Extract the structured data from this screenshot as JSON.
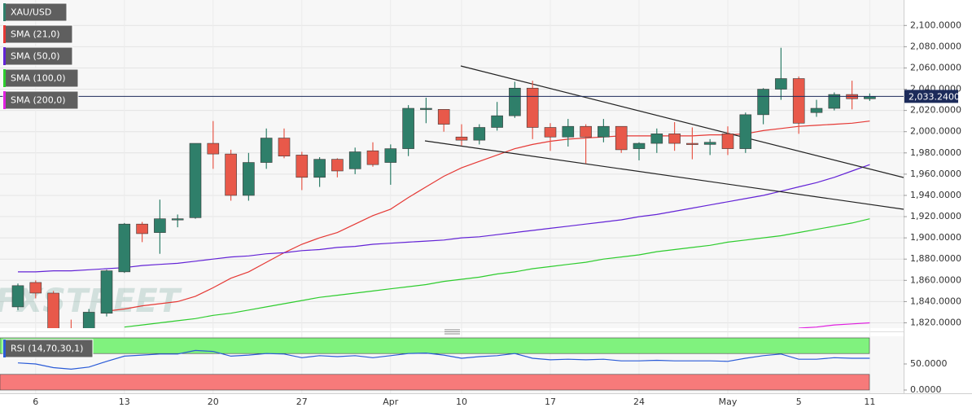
{
  "chart_data": [
    {
      "type": "candlestick",
      "categories": [
        null,
        "6",
        null,
        null,
        null,
        null,
        "13",
        null,
        null,
        null,
        null,
        "20",
        null,
        null,
        null,
        null,
        "27",
        null,
        null,
        null,
        null,
        "Apr",
        null,
        null,
        null,
        "10",
        null,
        null,
        null,
        null,
        "17",
        null,
        null,
        null,
        null,
        "24",
        null,
        null,
        null,
        null,
        "May",
        null,
        null,
        null,
        "5",
        null,
        null,
        null,
        "11"
      ],
      "series": [
        {
          "name": "XAU/USD",
          "type": "candlestick",
          "up_color": "#2f7f6a",
          "down_color": "#e8594a",
          "open": [
            1835,
            1858,
            1848,
            1812,
            1805,
            1829,
            1868,
            1913,
            1905,
            1917,
            1919,
            1989,
            1979,
            1940,
            1971,
            1994,
            1978,
            1957,
            1974,
            1965,
            1982,
            1971,
            1984,
            2021,
            2021,
            1995,
            1992,
            2004,
            2015,
            2041,
            2004,
            1995,
            2005,
            1995,
            2005,
            1984,
            1989,
            1998,
            1989,
            1988,
            1998,
            1984,
            2016,
            2040,
            2050,
            2018,
            2022,
            2035,
            2031
          ],
          "high": [
            1857,
            1860,
            1850,
            1823,
            1833,
            1870,
            1914,
            1915,
            1936,
            1922,
            1989,
            2010,
            1983,
            1980,
            2003,
            2003,
            1981,
            1976,
            1975,
            1985,
            1990,
            1988,
            2025,
            2032,
            2021,
            2007,
            2007,
            2028,
            2047,
            2048,
            2008,
            2012,
            2007,
            2012,
            2005,
            1990,
            2003,
            2009,
            2004,
            1993,
            2005,
            2018,
            2041,
            2079,
            2052,
            2030,
            2037,
            2048,
            2036
          ],
          "low": [
            1832,
            1843,
            1810,
            1795,
            1800,
            1826,
            1867,
            1896,
            1885,
            1910,
            1918,
            1965,
            1935,
            1935,
            1965,
            1975,
            1945,
            1948,
            1957,
            1960,
            1967,
            1950,
            1977,
            2008,
            2000,
            1987,
            1988,
            2001,
            2013,
            1993,
            1982,
            1986,
            1970,
            1990,
            1980,
            1973,
            1980,
            1982,
            1974,
            1978,
            1978,
            1980,
            2007,
            2030,
            1998,
            2014,
            2020,
            2021,
            2029
          ],
          "close": [
            1855,
            1848,
            1812,
            1800,
            1830,
            1869,
            1913,
            1904,
            1918,
            1918,
            1989,
            1979,
            1940,
            1971,
            1994,
            1977,
            1957,
            1974,
            1963,
            1981,
            1969,
            1984,
            2022,
            2022,
            2007,
            1992,
            2004,
            2015,
            2041,
            2004,
            1995,
            2005,
            1995,
            2005,
            1983,
            1989,
            1998,
            1989,
            1988,
            1990,
            1984,
            2016,
            2040,
            2050,
            2008,
            2022,
            2035,
            2031,
            2033.24
          ]
        },
        {
          "name": "SMA (21,0)",
          "type": "line",
          "color": "#e53935",
          "values": [
            null,
            null,
            null,
            null,
            null,
            1831,
            1833,
            1836,
            1838,
            1840,
            1845,
            1853,
            1862,
            1868,
            1877,
            1886,
            1894,
            1900,
            1905,
            1913,
            1921,
            1927,
            1938,
            1948,
            1958,
            1966,
            1972,
            1978,
            1984,
            1988,
            1991,
            1993,
            1994,
            1995,
            1996,
            1996,
            1996,
            1996,
            1996,
            1997,
            1997,
            1998,
            2001,
            2003,
            2005,
            2006,
            2007,
            2008,
            2010
          ]
        },
        {
          "name": "SMA (50,0)",
          "type": "line",
          "color": "#6323d6",
          "values": [
            1868,
            1868,
            1869,
            1869,
            1870,
            1871,
            1872,
            1874,
            1875,
            1876,
            1878,
            1880,
            1882,
            1883,
            1885,
            1886,
            1888,
            1889,
            1891,
            1892,
            1894,
            1895,
            1896,
            1897,
            1898,
            1900,
            1901,
            1903,
            1905,
            1907,
            1909,
            1911,
            1913,
            1915,
            1917,
            1920,
            1922,
            1925,
            1928,
            1931,
            1934,
            1937,
            1940,
            1944,
            1948,
            1952,
            1957,
            1963,
            1969
          ]
        },
        {
          "name": "SMA (100,0)",
          "type": "line",
          "color": "#2ecc2e",
          "values": [
            null,
            null,
            null,
            null,
            null,
            null,
            1816,
            1818,
            1820,
            1822,
            1824,
            1827,
            1829,
            1832,
            1835,
            1838,
            1841,
            1844,
            1846,
            1848,
            1850,
            1852,
            1854,
            1856,
            1859,
            1861,
            1863,
            1866,
            1868,
            1871,
            1873,
            1875,
            1877,
            1880,
            1882,
            1884,
            1887,
            1889,
            1891,
            1893,
            1896,
            1898,
            1900,
            1902,
            1905,
            1908,
            1911,
            1914,
            1918
          ]
        },
        {
          "name": "SMA (200,0)",
          "type": "line",
          "color": "#e020e0",
          "values": [
            null,
            null,
            null,
            null,
            null,
            null,
            null,
            null,
            null,
            null,
            null,
            null,
            null,
            null,
            null,
            null,
            null,
            null,
            null,
            null,
            null,
            null,
            null,
            null,
            null,
            null,
            null,
            null,
            null,
            null,
            null,
            null,
            null,
            null,
            null,
            null,
            null,
            null,
            null,
            null,
            null,
            null,
            null,
            null,
            1815,
            1816,
            1818,
            1819,
            1820
          ]
        }
      ],
      "ylim": [
        1815,
        2124
      ],
      "yticks": [
        {
          "value": 1820,
          "label": "1,820.0000"
        },
        {
          "value": 1840,
          "label": "1,840.0000"
        },
        {
          "value": 1860,
          "label": "1,860.0000"
        },
        {
          "value": 1880,
          "label": "1,880.0000"
        },
        {
          "value": 1900,
          "label": "1,900.0000"
        },
        {
          "value": 1920,
          "label": "1,920.0000"
        },
        {
          "value": 1940,
          "label": "1,940.0000"
        },
        {
          "value": 1960,
          "label": "1,960.0000"
        },
        {
          "value": 1980,
          "label": "1,980.0000"
        },
        {
          "value": 2000,
          "label": "2,000.0000"
        },
        {
          "value": 2020,
          "label": "2,020.0000"
        },
        {
          "value": 2040,
          "label": "2,040.0000"
        },
        {
          "value": 2060,
          "label": "2,060.0000"
        },
        {
          "value": 2080,
          "label": "2,080.0000"
        },
        {
          "value": 2100,
          "label": "2,100.0000"
        }
      ],
      "last_price": {
        "value": 2033.24,
        "label": "2,033.2400",
        "color": "#1c2b5a"
      },
      "watermark": "FXSTREET",
      "grid": true
    },
    {
      "type": "line",
      "series": [
        {
          "name": "RSI (14,70,30,1)",
          "color": "#2a5bd7",
          "values": [
            52,
            50,
            43,
            40,
            44,
            55,
            65,
            67,
            69,
            69,
            76,
            74,
            65,
            67,
            70,
            69,
            62,
            66,
            64,
            66,
            62,
            66,
            70,
            71,
            67,
            61,
            64,
            66,
            70,
            61,
            58,
            59,
            58,
            59,
            56,
            56,
            57,
            56,
            56,
            56,
            55,
            61,
            66,
            69,
            59,
            59,
            62,
            61,
            61
          ]
        }
      ],
      "bands": [
        {
          "from": 70,
          "to": 100,
          "color": "#80f27e"
        },
        {
          "from": 0,
          "to": 30,
          "color": "#f77a7a"
        }
      ],
      "ylim": [
        0,
        100
      ],
      "yticks": [
        {
          "value": 0,
          "label": "0.0000"
        },
        {
          "value": 50,
          "label": "50.0000"
        }
      ]
    }
  ]
}
